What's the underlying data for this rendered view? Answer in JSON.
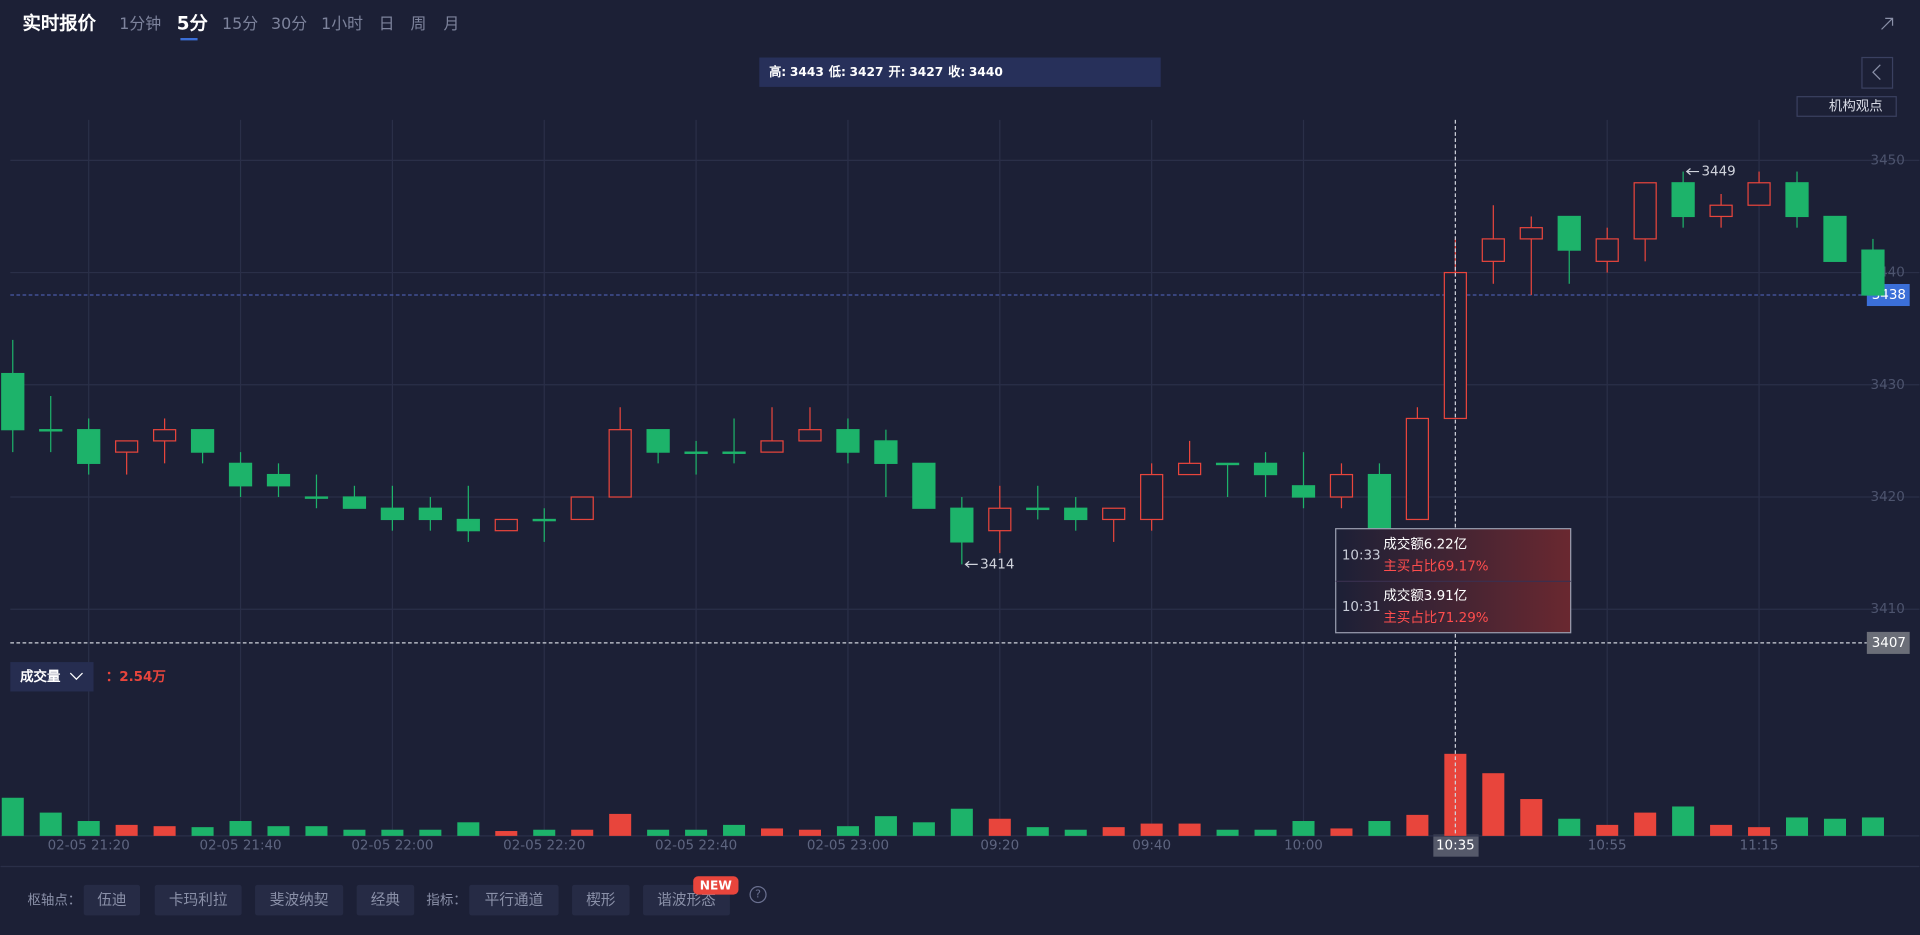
{
  "tabs": {
    "title": "实时报价",
    "periods": [
      "1分钟",
      "5分",
      "15分",
      "30分",
      "1小时",
      "日",
      "周",
      "月"
    ],
    "active": "5分"
  },
  "side_button": "机构观点",
  "chart_data": {
    "type": "candlestick",
    "categories": [
      null,
      null,
      "02-05 21:20",
      null,
      null,
      null,
      "02-05 21:40",
      null,
      null,
      null,
      "02-05 22:00",
      null,
      null,
      null,
      "02-05 22:20",
      null,
      null,
      null,
      "02-05 22:40",
      null,
      null,
      null,
      "02-05 23:00",
      null,
      null,
      null,
      "09:20",
      null,
      null,
      null,
      "09:40",
      null,
      null,
      null,
      "10:00",
      null,
      null,
      null,
      "10:35",
      null,
      null,
      null,
      "10:55",
      null,
      null,
      null,
      "11:15",
      null,
      null,
      null
    ],
    "open": [
      3431,
      3426,
      3426,
      3424,
      3425,
      3426,
      3423,
      3422,
      3420,
      3420,
      3419,
      3419,
      3418,
      3417,
      3418,
      3418,
      3420,
      3426,
      3424,
      3424,
      3424,
      3425,
      3426,
      3425,
      3423,
      3419,
      3417,
      3419,
      3419,
      3418,
      3418,
      3422,
      3423,
      3423,
      3421,
      3420,
      3422,
      3418,
      3427,
      3441,
      3443,
      3445,
      3441,
      3443,
      3448,
      3445,
      3446,
      3448,
      3445,
      3442
    ],
    "high": [
      3434,
      3429,
      3427,
      3425,
      3427,
      3426,
      3424,
      3423,
      3422,
      3421,
      3421,
      3420,
      3421,
      3418,
      3419,
      3420,
      3428,
      3426,
      3425,
      3427,
      3428,
      3428,
      3427,
      3426,
      3423,
      3420,
      3421,
      3421,
      3420,
      3419,
      3423,
      3425,
      3423,
      3424,
      3424,
      3423,
      3423,
      3428,
      3443,
      3446,
      3445,
      3445,
      3444,
      3448,
      3449,
      3447,
      3449,
      3449,
      3445,
      3443
    ],
    "low": [
      3424,
      3424,
      3422,
      3422,
      3423,
      3423,
      3420,
      3420,
      3419,
      3419,
      3417,
      3417,
      3416,
      3417,
      3416,
      3418,
      3420,
      3423,
      3422,
      3423,
      3424,
      3425,
      3423,
      3420,
      3419,
      3414,
      3415,
      3418,
      3417,
      3416,
      3417,
      3422,
      3420,
      3420,
      3419,
      3419,
      3417,
      3418,
      3427,
      3439,
      3438,
      3439,
      3440,
      3441,
      3444,
      3444,
      3446,
      3444,
      3441,
      3438
    ],
    "close": [
      3426,
      3426,
      3423,
      3425,
      3426,
      3424,
      3421,
      3421,
      3420,
      3419,
      3418,
      3418,
      3417,
      3418,
      3418,
      3420,
      3426,
      3424,
      3424,
      3424,
      3425,
      3426,
      3424,
      3423,
      3419,
      3416,
      3419,
      3419,
      3418,
      3419,
      3422,
      3423,
      3423,
      3422,
      3420,
      3422,
      3417,
      3427,
      3440,
      3443,
      3444,
      3442,
      3443,
      3448,
      3445,
      3446,
      3448,
      3445,
      3441,
      3438
    ],
    "volume": [
      1.18,
      0.72,
      0.46,
      0.34,
      0.3,
      0.27,
      0.46,
      0.3,
      0.3,
      0.19,
      0.19,
      0.19,
      0.42,
      0.15,
      0.19,
      0.19,
      0.68,
      0.19,
      0.19,
      0.34,
      0.23,
      0.19,
      0.3,
      0.61,
      0.42,
      0.84,
      0.53,
      0.27,
      0.19,
      0.27,
      0.38,
      0.38,
      0.19,
      0.19,
      0.46,
      0.23,
      0.46,
      0.65,
      2.54,
      1.94,
      1.14,
      0.53,
      0.34,
      0.72,
      0.91,
      0.34,
      0.27,
      0.57,
      0.53,
      0.57
    ],
    "ylim": [
      3405.4,
      3453.6
    ],
    "yticks": [
      3410,
      3420,
      3430,
      3440,
      3450
    ],
    "volume_ylim": [
      0,
      4.66
    ],
    "up_color": "#e8453c",
    "down_color": "#1db36a",
    "grid": true,
    "price_line": 3407,
    "crosshair": "10:35",
    "ohlc_labels": [
      "高:",
      "低:",
      "开:",
      "收:"
    ],
    "volume_label": "成交量",
    "volume_readout": "：2.54万",
    "popups": [
      {
        "time": "10:33",
        "amount": "成交额6.22亿",
        "ratio": "主买占比69.17%"
      },
      {
        "time": "10:31",
        "amount": "成交额3.91亿",
        "ratio": "主买占比71.29%"
      }
    ]
  },
  "bottom_bar": {
    "pivot_label": "枢轴点：",
    "pivots": [
      "伍迪",
      "卡玛利拉",
      "斐波纳契",
      "经典"
    ],
    "indicator_label": "指标：",
    "indicators": [
      "平行通道",
      "楔形",
      "谐波形态"
    ],
    "badge": "NEW"
  }
}
